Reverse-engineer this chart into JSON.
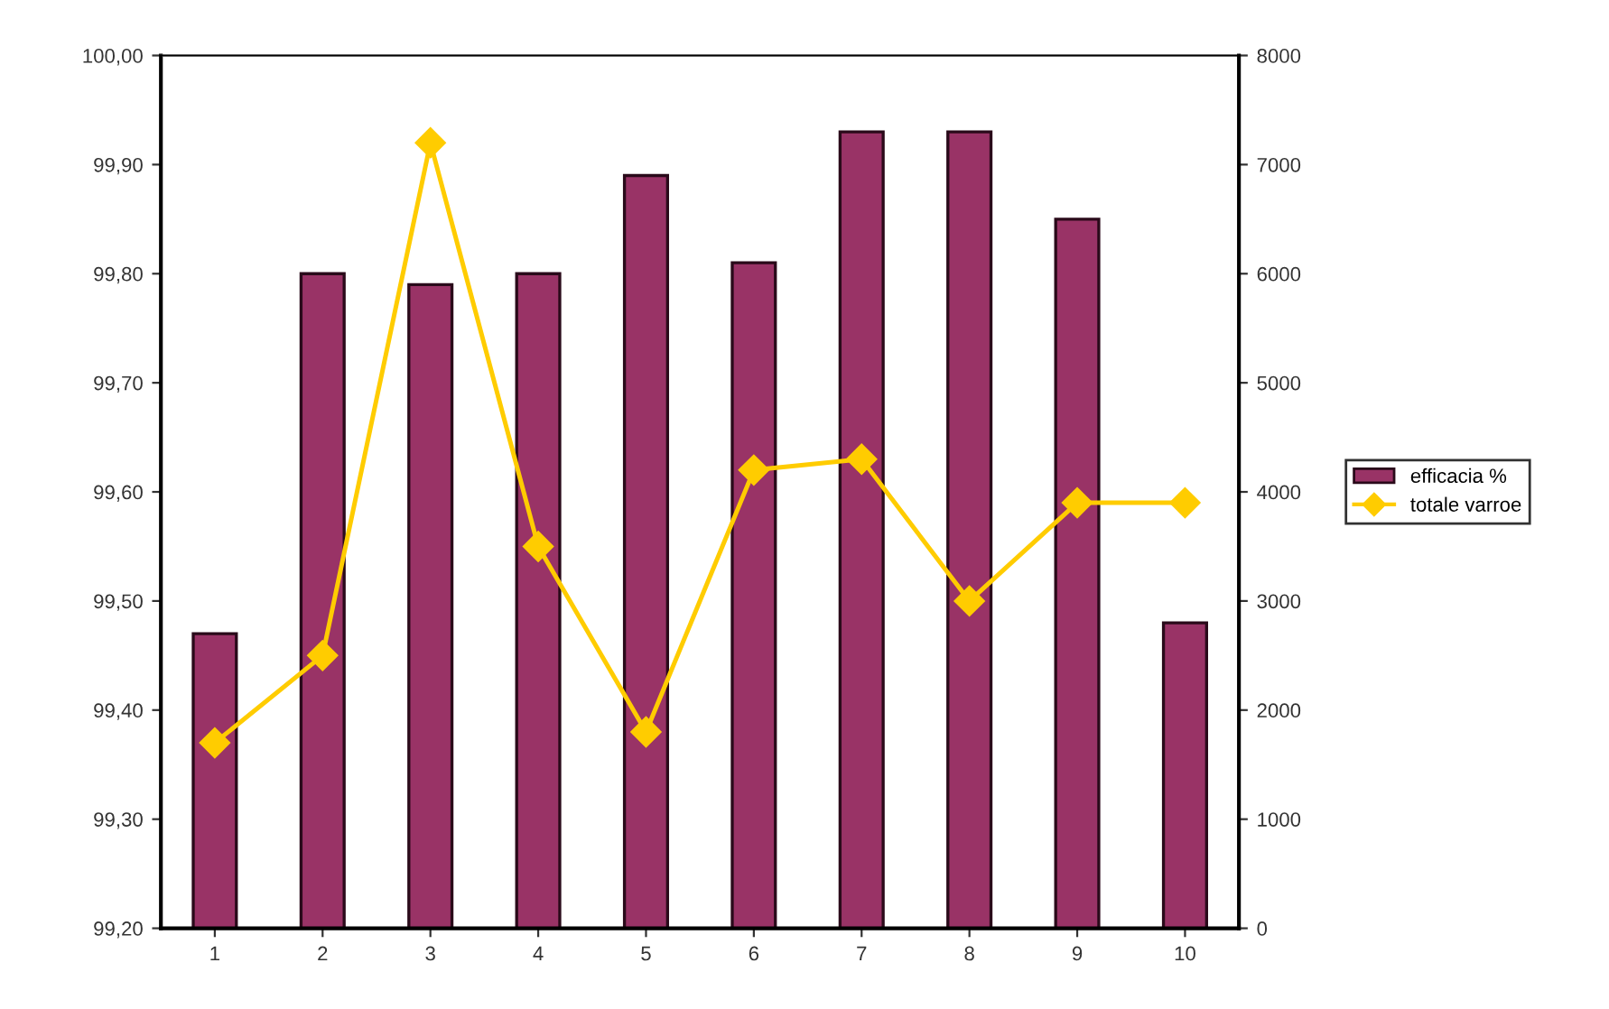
{
  "chart_data": {
    "type": "bar",
    "categories": [
      "1",
      "2",
      "3",
      "4",
      "5",
      "6",
      "7",
      "8",
      "9",
      "10"
    ],
    "series": [
      {
        "name": "efficacia %",
        "color": "#993366",
        "values": [
          99.47,
          99.8,
          99.79,
          99.8,
          99.89,
          99.81,
          99.93,
          99.93,
          99.85,
          99.48
        ]
      },
      {
        "name": "totale varroe",
        "type": "line",
        "axis": "y2",
        "color": "#ffcc00",
        "marker": "diamond",
        "values": [
          1700,
          2500,
          7200,
          3500,
          1800,
          4200,
          4300,
          3000,
          3900,
          3900
        ]
      }
    ],
    "ylim": [
      99.2,
      100.0
    ],
    "yticks": [
      {
        "value": 99.2,
        "label": "99,20"
      },
      {
        "value": 99.3,
        "label": "99,30"
      },
      {
        "value": 99.4,
        "label": "99,40"
      },
      {
        "value": 99.5,
        "label": "99,50"
      },
      {
        "value": 99.6,
        "label": "99,60"
      },
      {
        "value": 99.7,
        "label": "99,70"
      },
      {
        "value": 99.8,
        "label": "99,80"
      },
      {
        "value": 99.9,
        "label": "99,90"
      },
      {
        "value": 100.0,
        "label": "100,00"
      }
    ],
    "y2lim": [
      0,
      8000
    ],
    "y2ticks": [
      0,
      1000,
      2000,
      3000,
      4000,
      5000,
      6000,
      7000,
      8000
    ],
    "grid": false,
    "legend": "right"
  }
}
